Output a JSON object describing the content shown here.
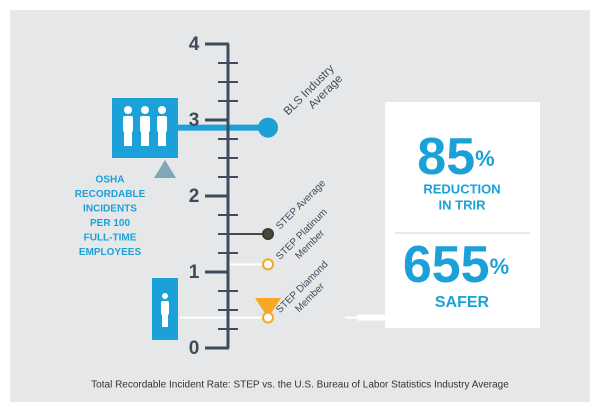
{
  "chart_data": {
    "type": "scale",
    "title": "Total Recordable Incident Rate: STEP vs. the U.S. Bureau of Labor Statistics Industry Average",
    "ylabel_lines": [
      "OSHA",
      "RECORDABLE",
      "INCIDENTS",
      "PER 100",
      "FULL-TIME",
      "EMPLOYEES"
    ],
    "ylim": [
      0,
      4
    ],
    "yticks": [
      0,
      1,
      2,
      3,
      4
    ],
    "minor_yticks": [
      0.25,
      0.5,
      0.75,
      1.25,
      1.5,
      1.75,
      2.25,
      2.5,
      2.75,
      3.25,
      3.5,
      3.75
    ],
    "axis_color": "#3d4b5c",
    "points": [
      {
        "label_lines": [
          "BLS Industry",
          "Average"
        ],
        "value": 2.9,
        "color": "#1ba1d8"
      },
      {
        "label_lines": [
          "STEP Average"
        ],
        "value": 1.5,
        "color": "#4a4a3c"
      },
      {
        "label_lines": [
          "STEP Platinum",
          "Member"
        ],
        "value": 1.1,
        "color": "#ffffff"
      },
      {
        "label_lines": [
          "STEP Diamond",
          "Member"
        ],
        "value": 0.4,
        "color": "#ffffff"
      }
    ],
    "stats": [
      {
        "value": 85,
        "unit": "%",
        "label_lines": [
          "REDUCTION",
          "IN TRIR"
        ]
      },
      {
        "value": 655,
        "unit": "%",
        "label_lines": [
          "SAFER"
        ]
      }
    ]
  }
}
